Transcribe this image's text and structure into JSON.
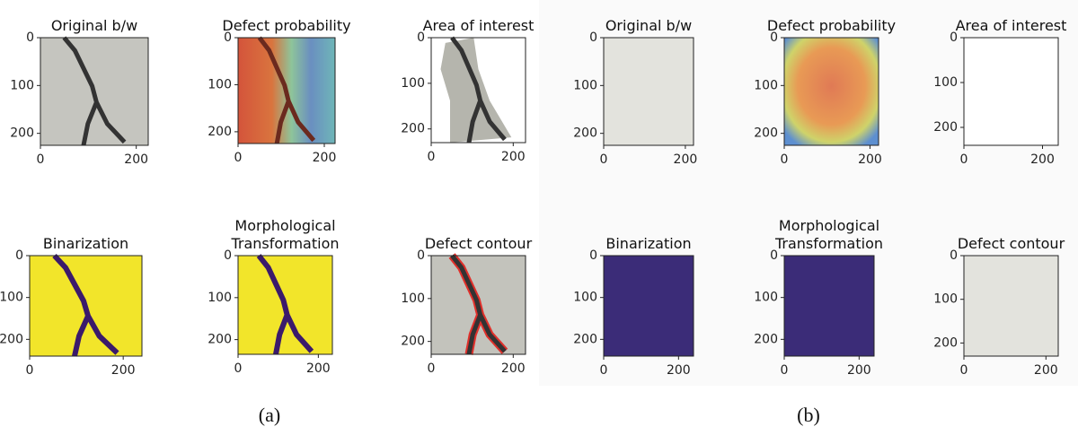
{
  "figures": [
    {
      "caption": "(a)",
      "panels": [
        {
          "title": [
            "Original b/w"
          ],
          "xticks": [
            0,
            200
          ],
          "yticks": [
            0,
            100,
            200
          ],
          "xlim": [
            0,
            225
          ],
          "ylim": [
            0,
            225
          ]
        },
        {
          "title": [
            "Defect probability"
          ],
          "xticks": [
            0,
            200
          ],
          "yticks": [
            0,
            100,
            200
          ],
          "xlim": [
            0,
            225
          ],
          "ylim": [
            0,
            225
          ]
        },
        {
          "title": [
            "Area of interest"
          ],
          "xticks": [
            0,
            200
          ],
          "yticks": [
            0,
            100,
            200
          ],
          "xlim": [
            0,
            230
          ],
          "ylim": [
            0,
            230
          ]
        },
        {
          "title": [
            "Binarization"
          ],
          "xticks": [
            0,
            200
          ],
          "yticks": [
            0,
            100,
            200
          ],
          "xlim": [
            0,
            240
          ],
          "ylim": [
            0,
            240
          ]
        },
        {
          "title": [
            "Morphological",
            "Transformation"
          ],
          "xticks": [
            0,
            200
          ],
          "yticks": [
            0,
            100,
            200
          ],
          "xlim": [
            0,
            235
          ],
          "ylim": [
            0,
            235
          ]
        },
        {
          "title": [
            "Defect contour"
          ],
          "xticks": [
            0,
            200
          ],
          "yticks": [
            0,
            100,
            200
          ],
          "xlim": [
            0,
            230
          ],
          "ylim": [
            0,
            230
          ]
        }
      ]
    },
    {
      "caption": "(b)",
      "panels": [
        {
          "title": [
            "Original b/w"
          ],
          "xticks": [
            0,
            200
          ],
          "yticks": [
            0,
            100,
            200
          ],
          "xlim": [
            0,
            220
          ],
          "ylim": [
            0,
            225
          ]
        },
        {
          "title": [
            "Defect probability"
          ],
          "xticks": [
            0,
            200
          ],
          "yticks": [
            0,
            100,
            200
          ],
          "xlim": [
            0,
            220
          ],
          "ylim": [
            0,
            225
          ]
        },
        {
          "title": [
            "Area of interest"
          ],
          "xticks": [
            0,
            200
          ],
          "yticks": [
            0,
            100,
            200
          ],
          "xlim": [
            0,
            240
          ],
          "ylim": [
            0,
            240
          ]
        },
        {
          "title": [
            "Binarization"
          ],
          "xticks": [
            0,
            200
          ],
          "yticks": [
            0,
            100,
            200
          ],
          "xlim": [
            0,
            240
          ],
          "ylim": [
            0,
            240
          ]
        },
        {
          "title": [
            "Morphological",
            "Transformation"
          ],
          "xticks": [
            0,
            200
          ],
          "yticks": [
            0,
            100,
            200
          ],
          "xlim": [
            0,
            240
          ],
          "ylim": [
            0,
            240
          ]
        },
        {
          "title": [
            "Defect contour"
          ],
          "xticks": [
            0,
            200
          ],
          "yticks": [
            0,
            100,
            200
          ],
          "xlim": [
            0,
            230
          ],
          "ylim": [
            0,
            230
          ]
        }
      ]
    }
  ]
}
